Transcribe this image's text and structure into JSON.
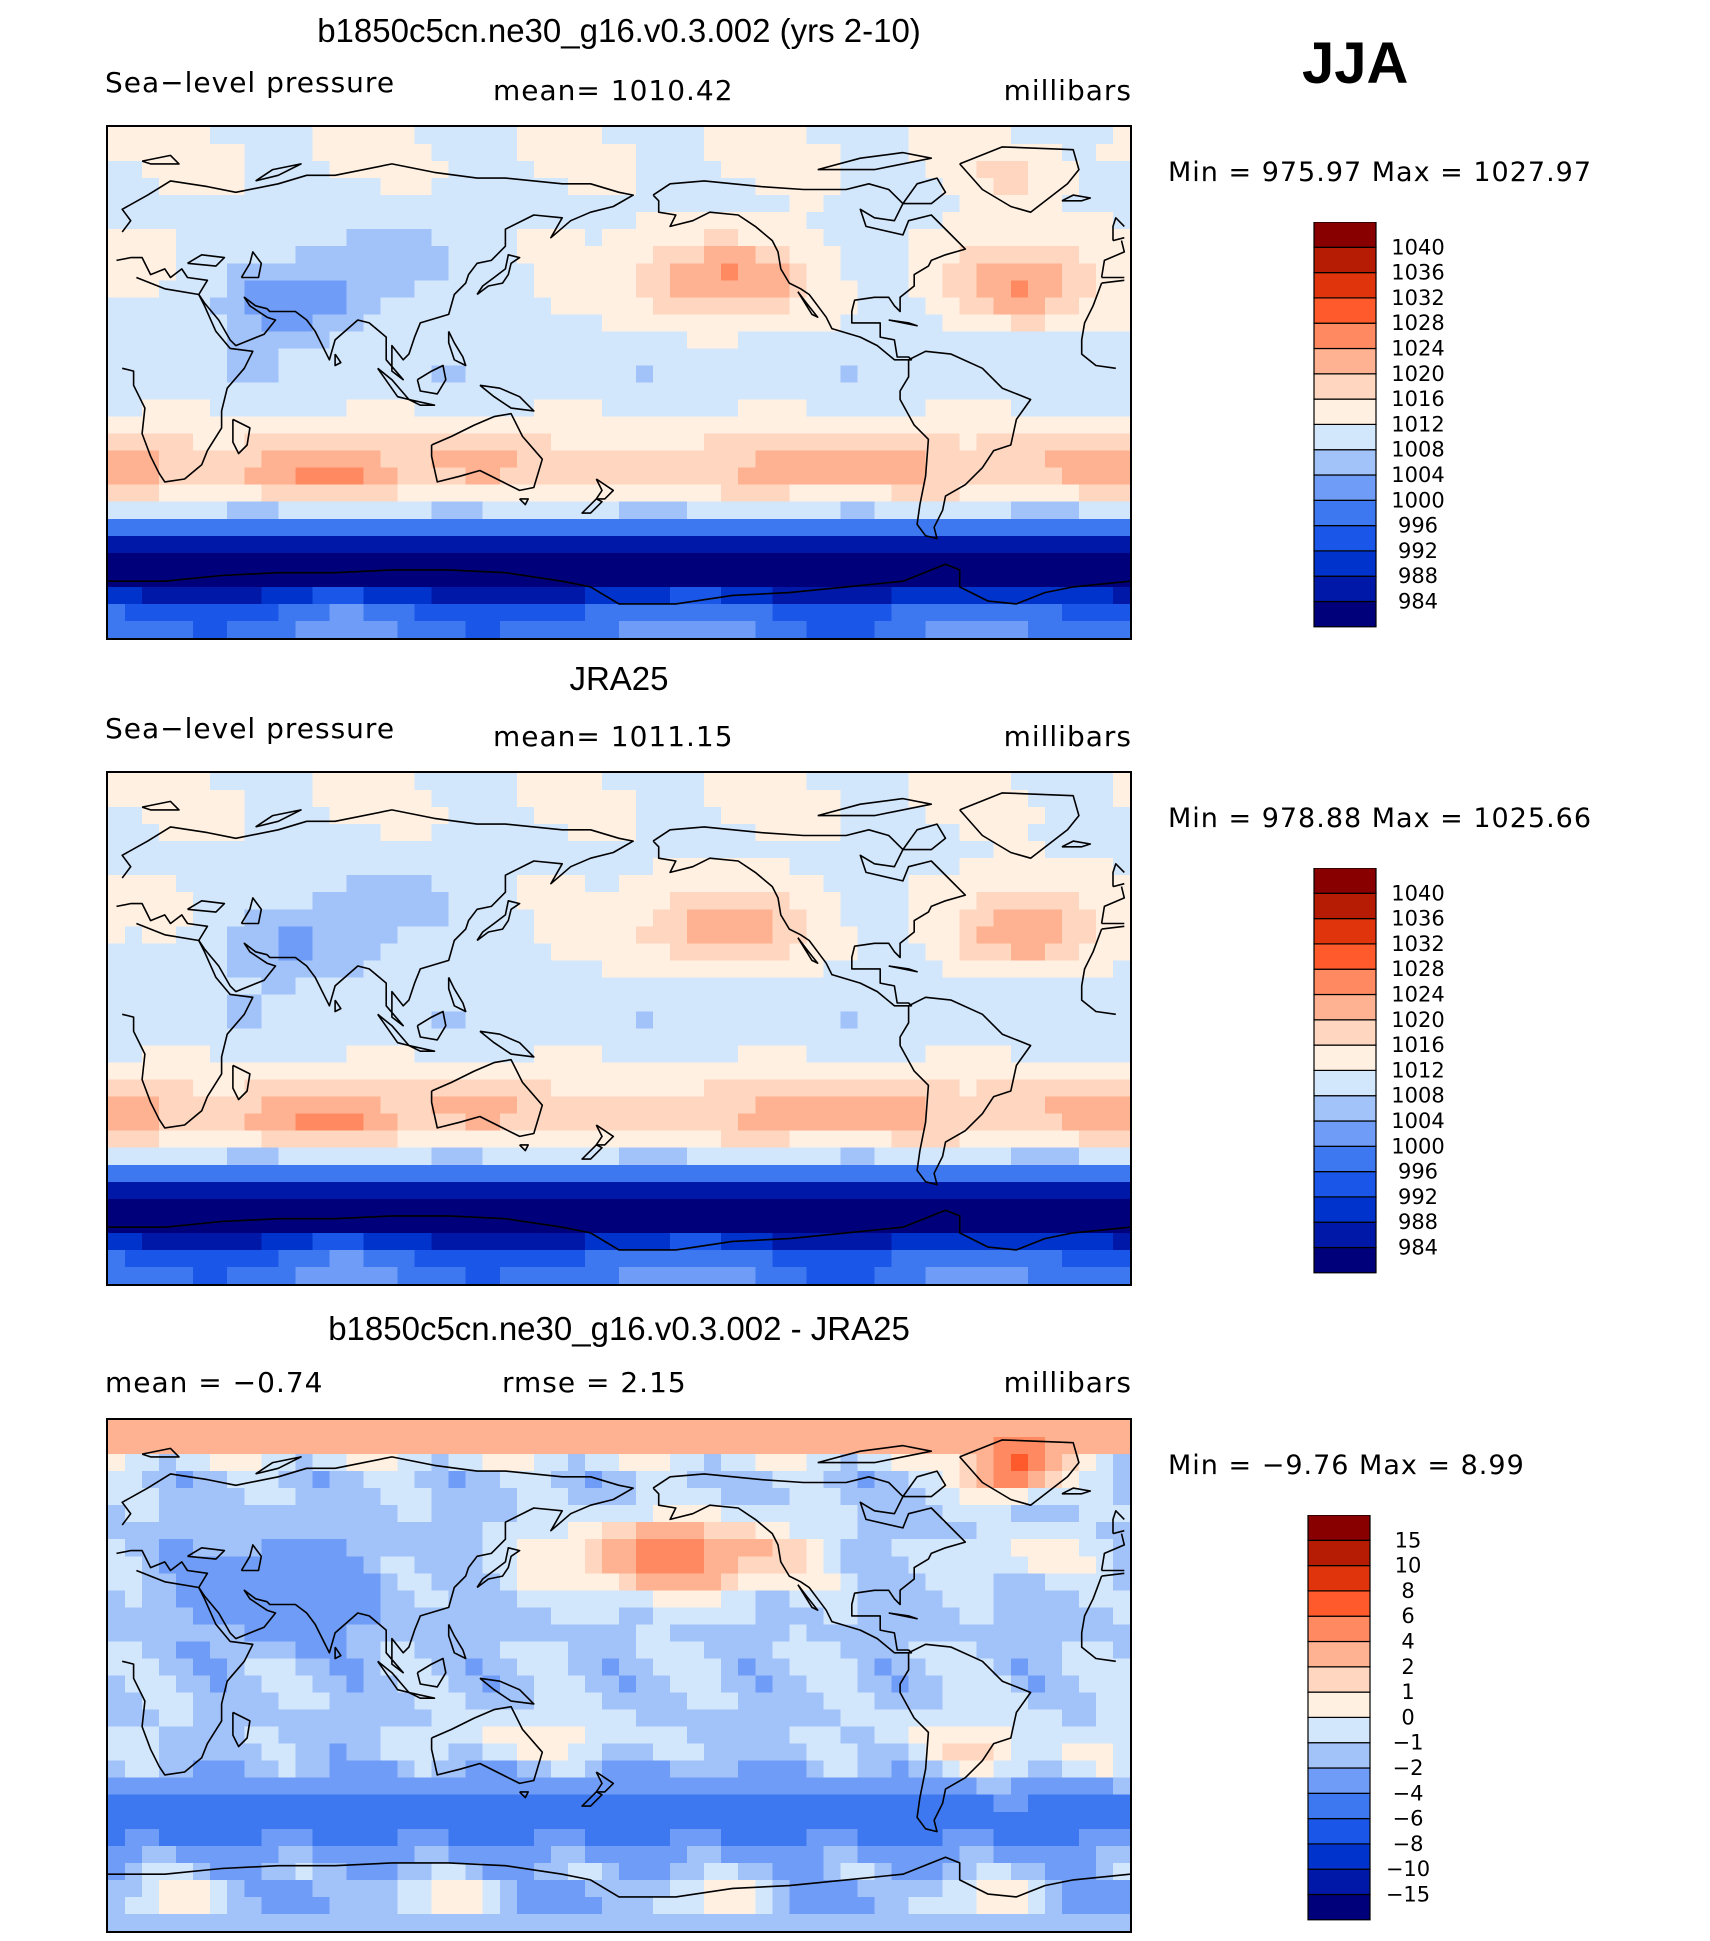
{
  "season": "JJA",
  "colors": {
    "slp_levels": [
      "#00007a",
      "#0018a8",
      "#0032cc",
      "#1a56e8",
      "#3e78f0",
      "#6f9cf6",
      "#a2c2fa",
      "#d2e6fc",
      "#fff0e2",
      "#ffd6bf",
      "#ffb292",
      "#ff8a62",
      "#ff5a2c",
      "#e0350c",
      "#b61c04",
      "#880000"
    ],
    "diff_levels": [
      "#00007a",
      "#0018a8",
      "#0032cc",
      "#1a56e8",
      "#3e78f0",
      "#6f9cf6",
      "#a2c2fa",
      "#d2e6fc",
      "#fff0e2",
      "#ffd6bf",
      "#ffb292",
      "#ff8a62",
      "#ff5a2c",
      "#e0350c",
      "#b61c04",
      "#880000"
    ],
    "coast": "#000000"
  },
  "panels": [
    {
      "title": "b1850c5cn.ne30_g16.v0.3.002 (yrs 2-10)",
      "left_label": "Sea−level pressure",
      "center_label": "mean=  1010.42",
      "right_label": "millibars",
      "minmax": "Min  =  975.97  Max  =  1027.97"
    },
    {
      "title": "JRA25",
      "left_label": "Sea−level pressure",
      "center_label": "mean=  1011.15",
      "right_label": "millibars",
      "minmax": "Min  =  978.88  Max  =  1025.66"
    },
    {
      "title": "b1850c5cn.ne30_g16.v0.3.002 - JRA25",
      "left_label": "mean  =    −0.74",
      "center_label": "rmse  =      2.15",
      "right_label": "millibars",
      "minmax": "Min  =    −9.76  Max  =       8.99"
    }
  ],
  "chart_data": [
    {
      "type": "heatmap",
      "title": "b1850c5cn.ne30_g16.v0.3.002 (yrs 2-10)",
      "variable": "Sea-level pressure",
      "units": "millibars",
      "mean": 1010.42,
      "min": 975.97,
      "max": 1027.97,
      "colorbar_levels": [
        "1040",
        "1036",
        "1032",
        "1028",
        "1024",
        "1020",
        "1016",
        "1012",
        "1008",
        "1004",
        "1000",
        "996",
        "992",
        "988",
        "984"
      ]
    },
    {
      "type": "heatmap",
      "title": "JRA25",
      "variable": "Sea-level pressure",
      "units": "millibars",
      "mean": 1011.15,
      "min": 978.88,
      "max": 1025.66,
      "colorbar_levels": [
        "1040",
        "1036",
        "1032",
        "1028",
        "1024",
        "1020",
        "1016",
        "1012",
        "1008",
        "1004",
        "1000",
        "996",
        "992",
        "988",
        "984"
      ]
    },
    {
      "type": "heatmap",
      "title": "b1850c5cn.ne30_g16.v0.3.002 - JRA25",
      "units": "millibars",
      "mean": -0.74,
      "rmse": 2.15,
      "min": -9.76,
      "max": 8.99,
      "colorbar_levels": [
        "15",
        "10",
        "8",
        "6",
        "4",
        "2",
        "1",
        "0",
        "−1",
        "−2",
        "−4",
        "−6",
        "−8",
        "−10",
        "−15"
      ]
    }
  ]
}
